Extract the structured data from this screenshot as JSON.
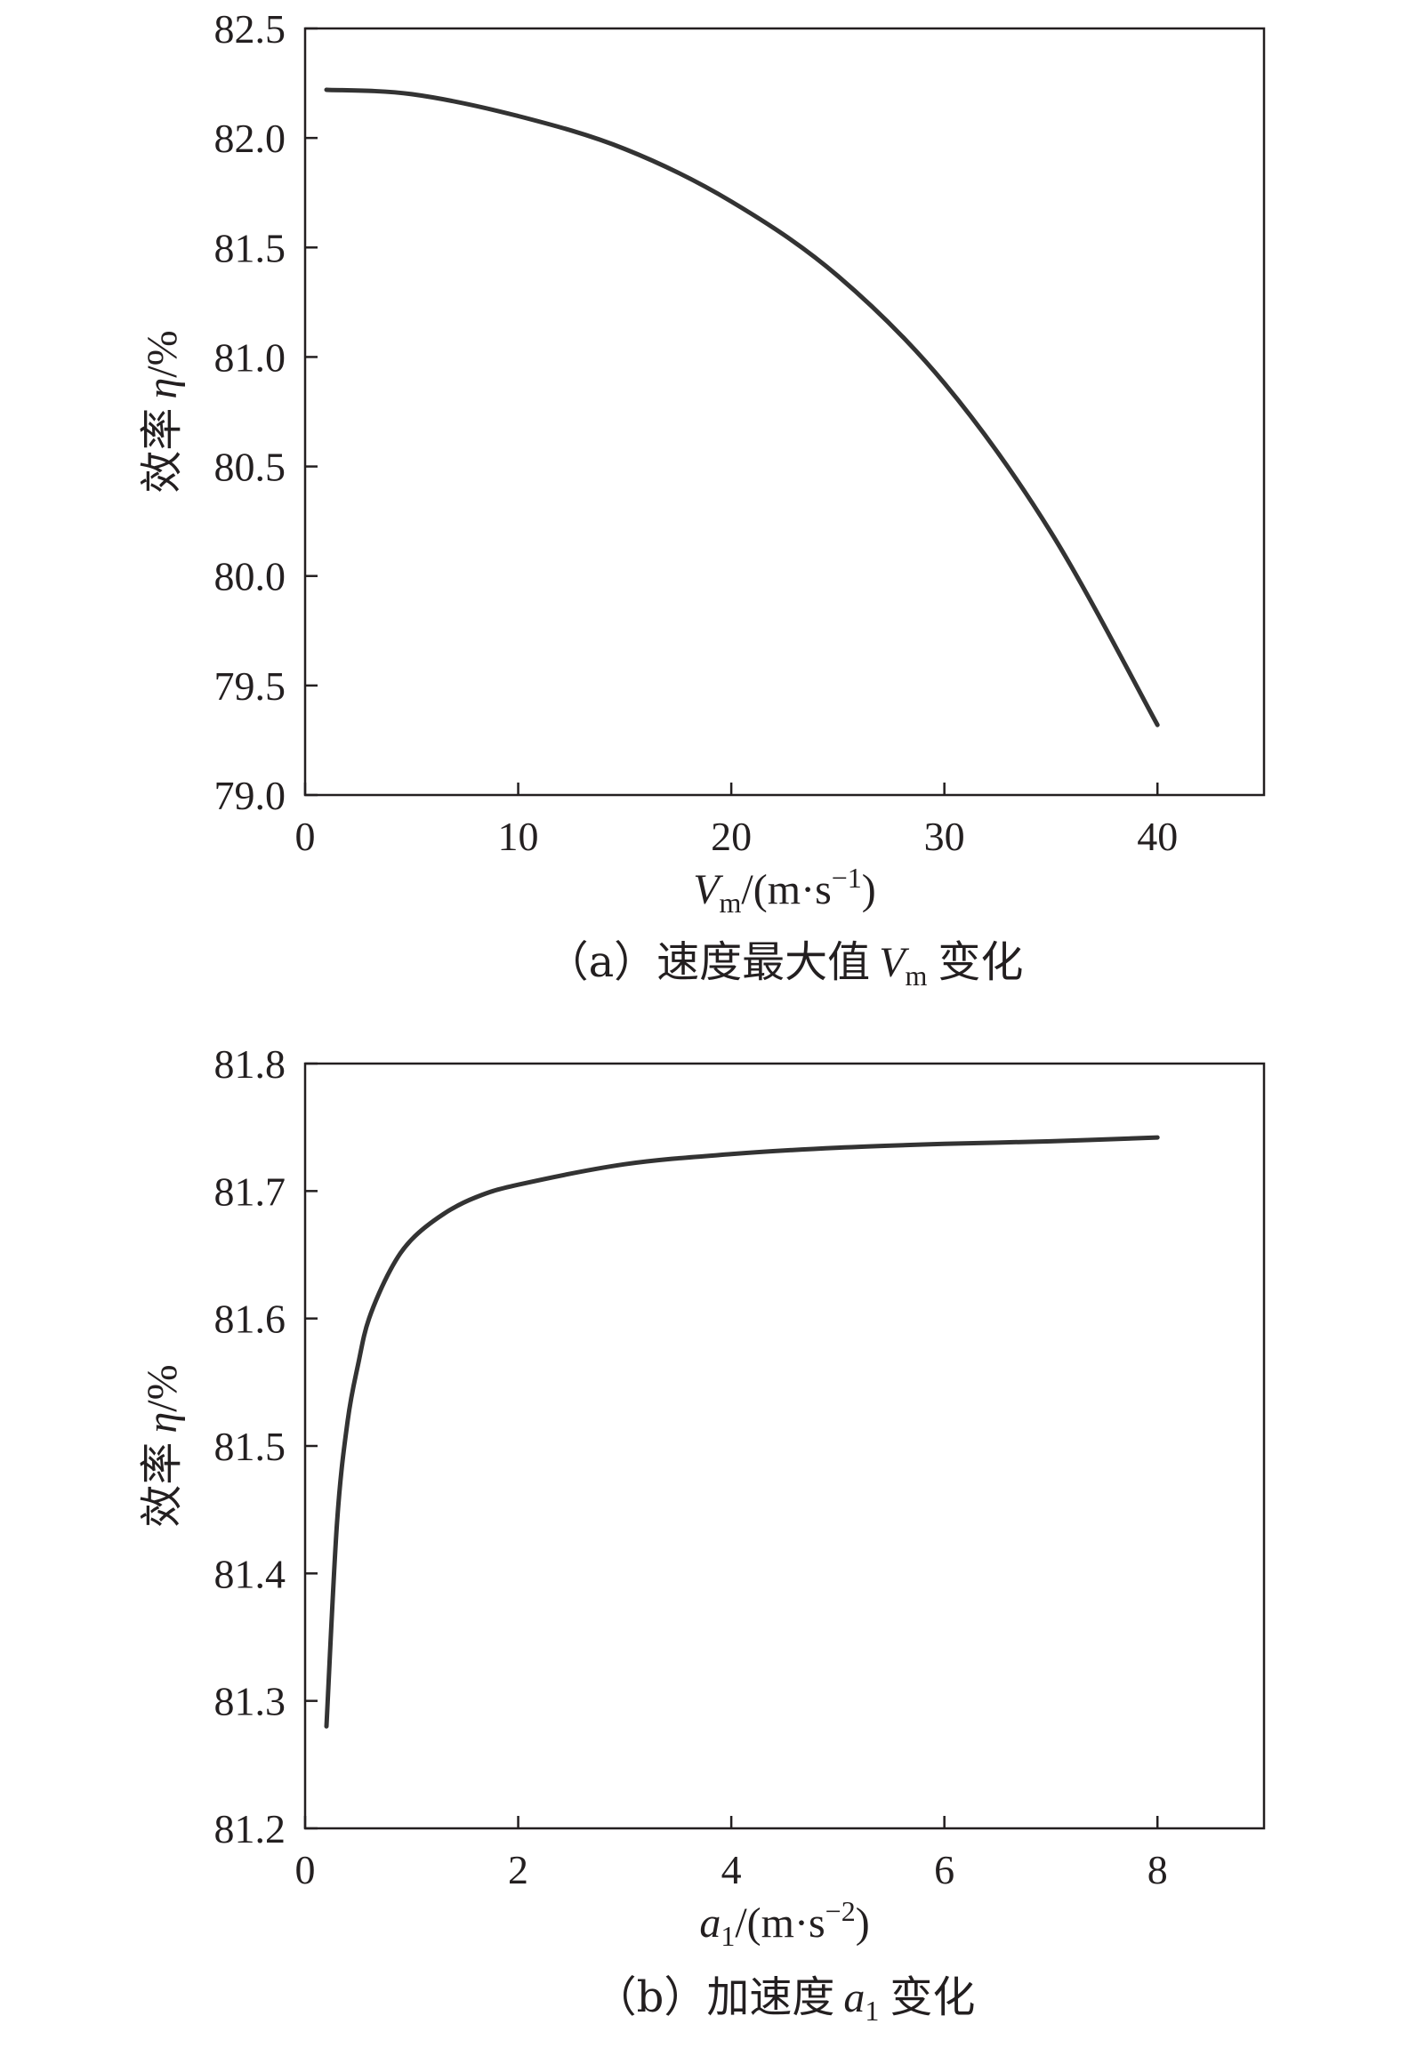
{
  "chart_data": [
    {
      "type": "line",
      "panel": "a",
      "xlabel": {
        "main": "V",
        "sub": "m",
        "rest": "/(m·s",
        "sup": "−1",
        "close": ")"
      },
      "ylabel": {
        "cjk": "效率",
        "sym": "η",
        "unit": "/%"
      },
      "caption": {
        "prefix": "（a）速度最大值",
        "var": "V",
        "sub": "m",
        "suffix": "变化"
      },
      "xlim": [
        0,
        45
      ],
      "ylim": [
        79.0,
        82.5
      ],
      "xticks": [
        0,
        10,
        20,
        30,
        40
      ],
      "xtick_labels": [
        "0",
        "10",
        "20",
        "30",
        "40"
      ],
      "yticks": [
        79.0,
        79.5,
        80.0,
        80.5,
        81.0,
        81.5,
        82.0,
        82.5
      ],
      "ytick_labels": [
        "79.0",
        "79.5",
        "80.0",
        "80.5",
        "81.0",
        "81.5",
        "82.0",
        "82.5"
      ],
      "grid": false,
      "series": [
        {
          "x": [
            1,
            5,
            10,
            15,
            20,
            25,
            30,
            35,
            40
          ],
          "y": [
            82.22,
            82.2,
            82.1,
            81.95,
            81.71,
            81.37,
            80.88,
            80.2,
            79.32
          ]
        }
      ]
    },
    {
      "type": "line",
      "panel": "b",
      "xlabel": {
        "main": "a",
        "sub": "1",
        "rest": "/(m·s",
        "sup": "−2",
        "close": ")"
      },
      "ylabel": {
        "cjk": "效率",
        "sym": "η",
        "unit": "/%"
      },
      "caption": {
        "prefix": "（b）加速度",
        "var": "a",
        "sub": "1",
        "suffix": "变化"
      },
      "xlim": [
        0,
        9
      ],
      "ylim": [
        81.2,
        81.8
      ],
      "xticks": [
        0,
        2,
        4,
        6,
        8
      ],
      "xtick_labels": [
        "0",
        "2",
        "4",
        "6",
        "8"
      ],
      "yticks": [
        81.2,
        81.3,
        81.4,
        81.5,
        81.6,
        81.7,
        81.8
      ],
      "ytick_labels": [
        "81.2",
        "81.3",
        "81.4",
        "81.5",
        "81.6",
        "81.7",
        "81.8"
      ],
      "grid": false,
      "series": [
        {
          "x": [
            0.2,
            0.3,
            0.4,
            0.5,
            0.6,
            0.8,
            1.0,
            1.3,
            1.6,
            2.0,
            3.0,
            4.0,
            5.0,
            6.0,
            7.0,
            8.0
          ],
          "y": [
            81.28,
            81.44,
            81.52,
            81.565,
            81.6,
            81.638,
            81.662,
            81.682,
            81.695,
            81.705,
            81.721,
            81.729,
            81.734,
            81.737,
            81.739,
            81.742
          ]
        }
      ]
    }
  ]
}
